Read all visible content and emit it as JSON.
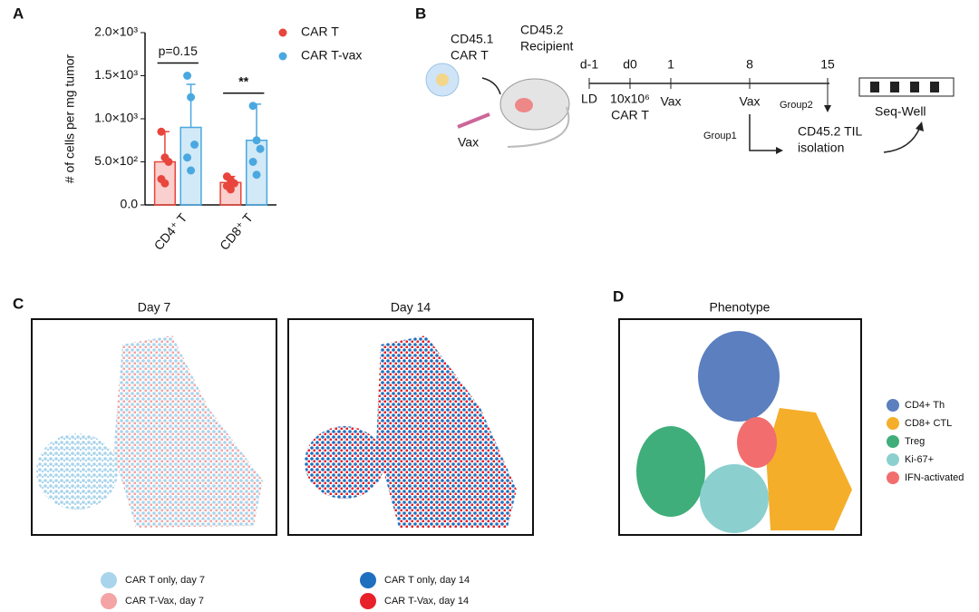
{
  "panel_labels": [
    "A",
    "B",
    "C",
    "D"
  ],
  "chart_data": {
    "type": "bar",
    "y_label": "# of cells per mg tumor",
    "categories": [
      "CD4⁺ T",
      "CD8⁺ T"
    ],
    "series": [
      {
        "name": "CAR T",
        "color": "#e8453c",
        "values": [
          500,
          260
        ],
        "errors": [
          350,
          70
        ],
        "points": [
          [
            850,
            550,
            500,
            300,
            250
          ],
          [
            330,
            290,
            250,
            220,
            180
          ]
        ]
      },
      {
        "name": "CAR T-vax",
        "color": "#4aa8e0",
        "values": [
          900,
          750
        ],
        "errors": [
          500,
          420
        ],
        "points": [
          [
            1500,
            1250,
            700,
            550,
            400
          ],
          [
            1150,
            750,
            650,
            500,
            350
          ]
        ]
      }
    ],
    "ylim": [
      0,
      2000
    ],
    "yticks": [
      {
        "value": 0,
        "label": "0.0"
      },
      {
        "value": 500,
        "label": "5.0×10²"
      },
      {
        "value": 1000,
        "label": "1.0×10³"
      },
      {
        "value": 1500,
        "label": "1.5×10³"
      },
      {
        "value": 2000,
        "label": "2.0×10³"
      }
    ],
    "annotations": [
      "p=0.15",
      "**"
    ]
  },
  "diagram": {
    "donor": [
      "CD45.1",
      "CAR T"
    ],
    "recipient": [
      "CD45.2",
      "Recipient"
    ],
    "vax": "Vax",
    "days": [
      "d-1",
      "d0",
      "1",
      "8",
      "15"
    ],
    "events": [
      "LD",
      "10x10⁶",
      "CAR T",
      "Vax",
      "Vax"
    ],
    "groups": [
      "Group2",
      "Group1"
    ],
    "isolation": [
      "CD45.2 TIL",
      "isolation"
    ],
    "seqwell": "Seq-Well"
  },
  "umap": {
    "day7": {
      "title": "Day 7",
      "legend": [
        {
          "name": "CAR T only, day 7",
          "color": "#a8d4ec"
        },
        {
          "name": "CAR T-Vax, day 7",
          "color": "#f4a4a4"
        }
      ]
    },
    "day14": {
      "title": "Day 14",
      "legend": [
        {
          "name": "CAR T only, day 14",
          "color": "#1f6fbf"
        },
        {
          "name": "CAR T-Vax, day 14",
          "color": "#e8202a"
        }
      ]
    },
    "phenotype": {
      "title": "Phenotype",
      "legend": [
        {
          "name": "CD4+ Th",
          "color": "#5b7fbf"
        },
        {
          "name": "CD8+ CTL",
          "color": "#f5ae2a"
        },
        {
          "name": "Treg",
          "color": "#3fae7a"
        },
        {
          "name": "Ki-67+",
          "color": "#8ccfcf"
        },
        {
          "name": "IFN-activated",
          "color": "#f26e6e"
        }
      ]
    }
  }
}
